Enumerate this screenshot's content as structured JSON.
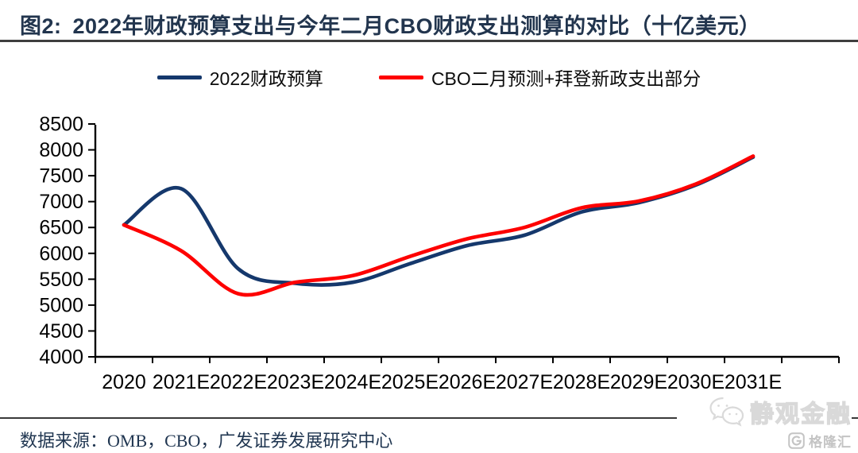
{
  "header": {
    "figure_label": "图2:",
    "title": "2022年财政预算支出与今年二月CBO财政支出测算的对比（十亿美元）"
  },
  "legend": [
    {
      "label": "2022财政预算",
      "color": "#15386c"
    },
    {
      "label": "CBO二月预测+拜登新政支出部分",
      "color": "#fe0000"
    }
  ],
  "chart_data": {
    "type": "line",
    "title": "2022年财政预算支出与今年二月CBO财政支出测算的对比（十亿美元）",
    "xlabel": "",
    "ylabel": "",
    "categories": [
      "2020",
      "2021E",
      "2022E",
      "2023E",
      "2024E",
      "2025E",
      "2026E",
      "2027E",
      "2028E",
      "2029E",
      "2030E",
      "2031E"
    ],
    "series": [
      {
        "name": "2022财政预算",
        "color": "#15386c",
        "values": [
          6550,
          7250,
          5700,
          5420,
          5440,
          5800,
          6150,
          6350,
          6800,
          6980,
          7320,
          7860
        ]
      },
      {
        "name": "CBO二月预测+拜登新政支出部分",
        "color": "#fe0000",
        "values": [
          6550,
          6050,
          5220,
          5440,
          5570,
          5940,
          6280,
          6500,
          6880,
          7010,
          7340,
          7880
        ]
      }
    ],
    "ylim": [
      4000,
      8500
    ],
    "y_ticks": [
      8500,
      8000,
      7500,
      7000,
      6500,
      6000,
      5500,
      5000,
      4500,
      4000
    ],
    "grid": false,
    "legend_position": "top"
  },
  "footer": {
    "source": "数据来源：OMB，CBO，广发证券发展研究中心"
  },
  "watermark": {
    "wechat_name": "静观金融",
    "brand": "格隆汇"
  }
}
